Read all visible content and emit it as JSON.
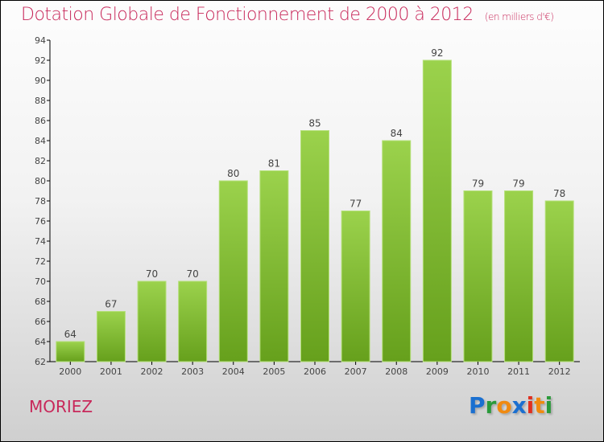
{
  "chart_data": {
    "type": "bar",
    "title": "Dotation Globale de Fonctionnement de 2000 à 2012",
    "subtitle": "(en milliers d'€)",
    "categories": [
      "2000",
      "2001",
      "2002",
      "2003",
      "2004",
      "2005",
      "2006",
      "2007",
      "2008",
      "2009",
      "2010",
      "2011",
      "2012"
    ],
    "values": [
      64,
      67,
      70,
      70,
      80,
      81,
      85,
      77,
      84,
      92,
      79,
      79,
      78
    ],
    "ylim": [
      62,
      94
    ],
    "yticks": [
      62,
      64,
      66,
      68,
      70,
      72,
      74,
      76,
      78,
      80,
      82,
      84,
      86,
      88,
      90,
      92,
      94
    ],
    "xlabel": "",
    "ylabel": "",
    "bar_color": "#7fc031",
    "grid": false
  },
  "location": "MORIEZ",
  "logo": "Proxiti"
}
